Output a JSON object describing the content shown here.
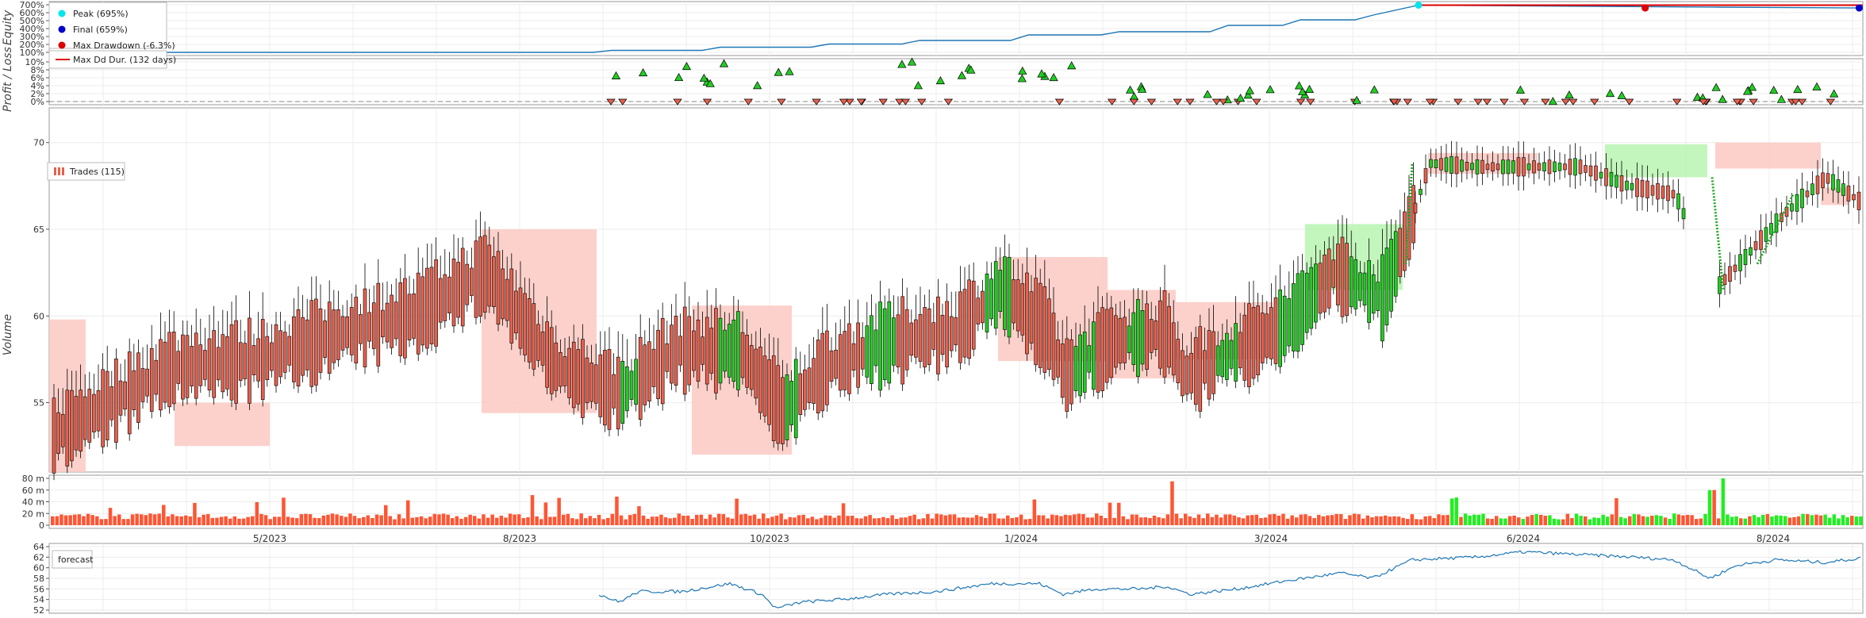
{
  "chart_data": [
    {
      "type": "line",
      "panel": "equity",
      "ylabel": "Equity",
      "yticks": [
        "100%",
        "200%",
        "300%",
        "400%",
        "500%",
        "600%",
        "700%"
      ],
      "ylim": [
        100,
        700
      ],
      "legend": [
        "Peak (695%)",
        "Final (659%)",
        "Max Drawdown (-6.3%)",
        "Max Dd Dur. (132 days)"
      ],
      "colors": {
        "line": "#1f77b4",
        "peak": "#00e5ee",
        "final": "#0000cc",
        "drawdown": "#dd0000"
      },
      "series": [
        {
          "x": [
            0,
            0.3,
            0.31,
            0.36,
            0.37,
            0.42,
            0.43,
            0.47,
            0.48,
            0.53,
            0.54,
            0.58,
            0.59,
            0.64,
            0.65,
            0.68,
            0.69,
            0.72,
            0.73,
            0.755,
            0.92,
            1.0
          ],
          "y": [
            100,
            100,
            125,
            125,
            165,
            165,
            205,
            205,
            250,
            250,
            320,
            320,
            360,
            360,
            440,
            440,
            510,
            510,
            570,
            695,
            670,
            659
          ]
        }
      ]
    },
    {
      "type": "scatter",
      "panel": "pl",
      "ylabel": "Profit / Loss",
      "yticks": [
        "0%",
        "2%",
        "4%",
        "6%",
        "8%",
        "10%"
      ],
      "ylim": [
        0,
        10
      ]
    },
    {
      "type": "bar",
      "panel": "ohlc",
      "legend": [
        "Trades (115)"
      ],
      "yticks": [
        "55",
        "60",
        "65",
        "70"
      ],
      "ylim": [
        51,
        71
      ],
      "colors": {
        "up": "#22cc22",
        "down": "#e8604c",
        "long_zone": "#b9f5b0",
        "short_zone": "#fbc9c2"
      }
    },
    {
      "type": "bar",
      "panel": "volume",
      "ylabel": "Volume",
      "yticks": [
        "0",
        "20 m",
        "40 m",
        "60 m",
        "80 m"
      ],
      "ylim": [
        0,
        80
      ]
    },
    {
      "type": "line",
      "panel": "forecast",
      "legend": [
        "forecast"
      ],
      "yticks": [
        "52",
        "54",
        "56",
        "58",
        "60",
        "62",
        "64"
      ],
      "ylim": [
        52,
        64
      ],
      "xticks": [
        "5/2023",
        "8/2023",
        "10/2023",
        "1/2024",
        "3/2024",
        "6/2024",
        "8/2024"
      ]
    }
  ]
}
